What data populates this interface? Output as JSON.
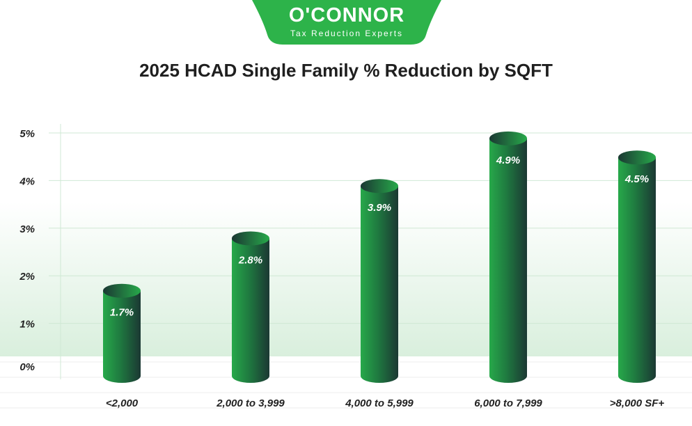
{
  "logo": {
    "name": "O'CONNOR",
    "tagline": "Tax Reduction Experts"
  },
  "colors": {
    "brand": "#2db34a",
    "bar_light": "#27a94a",
    "bar_dark": "#1b3833",
    "grid": "#cfe8d4"
  },
  "chart_data": {
    "type": "bar",
    "title": "2025 HCAD Single Family % Reduction by SQFT",
    "categories": [
      "<2,000",
      "2,000 to 3,999",
      "4,000 to 5,999",
      "6,000 to 7,999",
      ">8,000 SF+"
    ],
    "values": [
      1.7,
      2.8,
      3.9,
      4.9,
      4.5
    ],
    "data_labels": [
      "1.7%",
      "2.8%",
      "3.9%",
      "4.9%",
      "4.5%"
    ],
    "yticks": [
      "0%",
      "1%",
      "2%",
      "3%",
      "4%",
      "5%"
    ],
    "ylim": [
      0,
      5
    ],
    "grid": true,
    "style": "3d-cylinder"
  }
}
